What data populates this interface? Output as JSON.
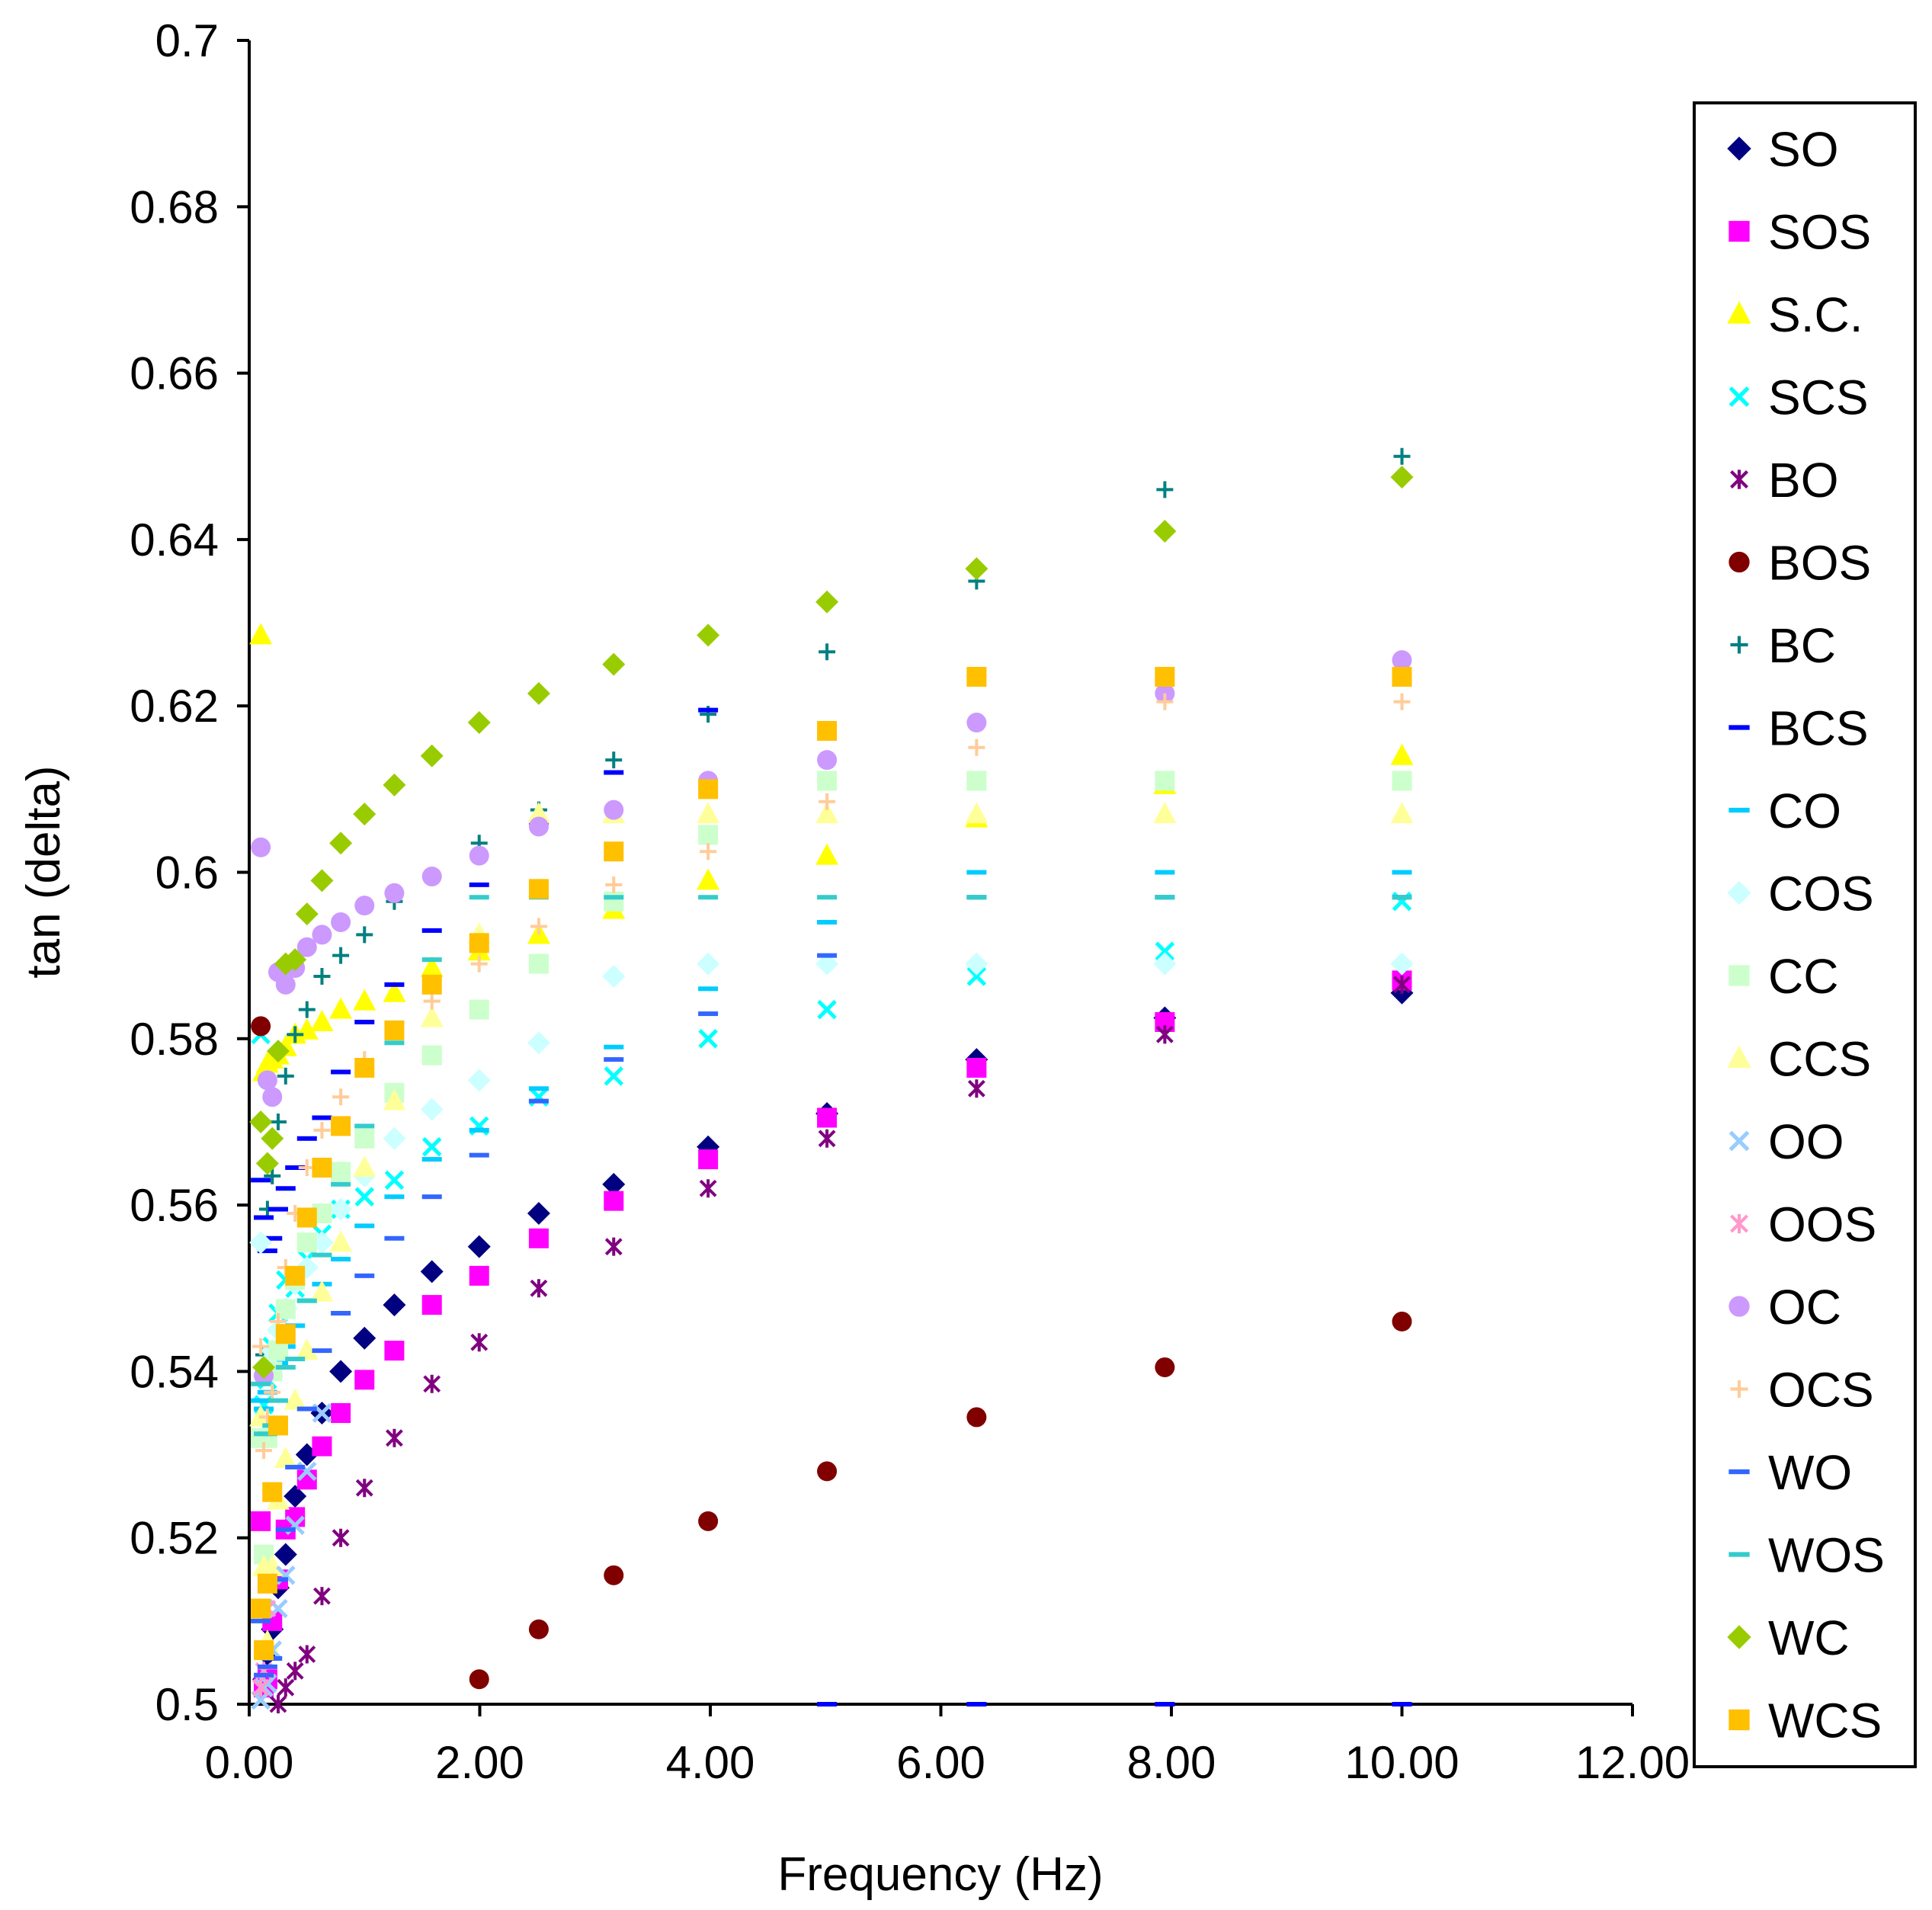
{
  "chart_data": {
    "type": "scatter",
    "title": "",
    "xlabel": "Frequency (Hz)",
    "ylabel": "tan (delta)",
    "xlim": [
      0,
      12
    ],
    "ylim": [
      0.5,
      0.7
    ],
    "x_ticks": [
      "0.00",
      "2.00",
      "4.00",
      "6.00",
      "8.00",
      "10.00",
      "12.00"
    ],
    "y_ticks": [
      "0.5",
      "0.52",
      "0.54",
      "0.56",
      "0.58",
      "0.6",
      "0.62",
      "0.64",
      "0.66",
      "0.68",
      "0.7"
    ],
    "legend_position": "right",
    "grid": false,
    "x": [
      0.1,
      0.126,
      0.158,
      0.2,
      0.251,
      0.316,
      0.398,
      0.501,
      0.631,
      0.794,
      1.0,
      1.259,
      1.585,
      1.995,
      2.512,
      3.162,
      3.981,
      5.012,
      6.31,
      7.943,
      10.0
    ],
    "series": [
      {
        "name": "SO",
        "color": "#000080",
        "marker": "diamond",
        "values": [
          0.499,
          0.503,
          0.506,
          0.509,
          0.514,
          0.518,
          0.525,
          0.53,
          0.535,
          0.54,
          0.544,
          0.548,
          0.552,
          0.555,
          0.559,
          0.5625,
          0.567,
          0.571,
          0.5775,
          0.5825,
          0.5855
        ]
      },
      {
        "name": "SOS",
        "color": "#ff00ff",
        "marker": "square",
        "values": [
          0.522,
          0.502,
          0.503,
          0.51,
          0.515,
          0.521,
          0.5225,
          0.527,
          0.531,
          0.535,
          0.539,
          0.5425,
          0.548,
          0.5515,
          0.556,
          0.5605,
          0.5655,
          0.5705,
          0.5765,
          0.582,
          0.587
        ]
      },
      {
        "name": "S.C.",
        "color": "#ffff00",
        "marker": "triangle",
        "values": [
          0.6285,
          0.576,
          0.577,
          0.5775,
          0.578,
          0.579,
          0.5805,
          0.581,
          0.582,
          0.5835,
          0.5845,
          0.5855,
          0.5885,
          0.5905,
          0.5925,
          0.5955,
          0.599,
          0.602,
          0.6065,
          0.6105,
          0.614
        ]
      },
      {
        "name": "SCS",
        "color": "#00ffff",
        "marker": "x",
        "values": [
          0.5805,
          0.536,
          0.539,
          0.543,
          0.547,
          0.551,
          0.55,
          0.5535,
          0.5565,
          0.5595,
          0.561,
          0.563,
          0.567,
          0.5695,
          0.573,
          0.5755,
          0.58,
          0.5835,
          0.5875,
          0.5905,
          0.5965
        ]
      },
      {
        "name": "BO",
        "color": "#800080",
        "marker": "asterisk",
        "values": [
          0.497,
          0.493,
          0.497,
          0.499,
          0.5,
          0.502,
          0.504,
          0.506,
          0.513,
          0.52,
          0.526,
          0.532,
          0.5385,
          0.5435,
          0.55,
          0.555,
          0.562,
          0.568,
          0.574,
          0.5805,
          0.5865
        ]
      },
      {
        "name": "BOS",
        "color": "#800000",
        "marker": "circle",
        "values": [
          0.5815,
          null,
          null,
          null,
          null,
          null,
          null,
          null,
          null,
          null,
          null,
          null,
          null,
          0.503,
          0.509,
          0.5155,
          0.522,
          0.528,
          0.5345,
          0.5405,
          0.546
        ]
      },
      {
        "name": "BC",
        "color": "#008080",
        "marker": "plus",
        "values": [
          0.57,
          0.542,
          0.5595,
          0.5635,
          0.57,
          0.5755,
          0.5805,
          0.5835,
          0.5875,
          0.59,
          0.5925,
          0.5965,
          0.5995,
          0.6035,
          0.6075,
          0.6135,
          0.619,
          0.6265,
          0.635,
          0.646,
          0.65
        ]
      },
      {
        "name": "BCS",
        "color": "#0000ff",
        "marker": "dash",
        "values": [
          0.563,
          0.5585,
          0.5545,
          0.556,
          0.5595,
          0.562,
          0.5645,
          0.568,
          0.5705,
          0.576,
          0.582,
          0.5865,
          0.593,
          0.5985,
          0.606,
          0.612,
          0.6195,
          0.5,
          0.5,
          0.5,
          0.5
        ]
      },
      {
        "name": "CO",
        "color": "#00ccff",
        "marker": "dash",
        "values": [
          0.5365,
          0.5355,
          0.5375,
          0.5395,
          0.541,
          0.543,
          0.5455,
          0.5485,
          0.5505,
          0.5535,
          0.5575,
          0.561,
          0.5655,
          0.569,
          0.574,
          0.579,
          0.586,
          0.594,
          0.6,
          0.6,
          0.6
        ]
      },
      {
        "name": "COS",
        "color": "#ccffff",
        "marker": "diamond",
        "values": [
          0.5555,
          0.5395,
          0.541,
          0.5425,
          0.545,
          0.5475,
          0.5505,
          0.5525,
          0.5555,
          0.5595,
          0.5635,
          0.568,
          0.5715,
          0.575,
          0.5795,
          0.5875,
          0.589,
          0.589,
          0.589,
          0.589,
          0.589
        ]
      },
      {
        "name": "CC",
        "color": "#ccffcc",
        "marker": "square",
        "values": [
          0.532,
          0.518,
          0.532,
          0.54,
          0.5425,
          0.5475,
          0.551,
          0.5555,
          0.559,
          0.564,
          0.568,
          0.5735,
          0.578,
          0.5835,
          0.589,
          0.5965,
          0.6045,
          0.611,
          0.611,
          0.611,
          0.611
        ]
      },
      {
        "name": "CCS",
        "color": "#ffff99",
        "marker": "triangle",
        "values": [
          0.5345,
          0.5165,
          0.5075,
          0.5165,
          0.5245,
          0.5295,
          0.5365,
          0.5425,
          0.5495,
          0.5555,
          0.5645,
          0.5725,
          0.5825,
          0.5925,
          0.607,
          0.607,
          0.607,
          0.607,
          0.607,
          0.607,
          0.607
        ]
      },
      {
        "name": "OO",
        "color": "#99ccff",
        "marker": "x",
        "values": [
          0.5005,
          0.502,
          0.5025,
          0.5065,
          0.5115,
          0.5155,
          0.5215,
          0.528,
          0.535,
          null,
          null,
          null,
          null,
          null,
          null,
          null,
          null,
          null,
          null,
          null,
          null
        ]
      },
      {
        "name": "OOS",
        "color": "#ff99cc",
        "marker": "asterisk",
        "values": [
          0.502,
          0.504,
          0.5115,
          null,
          null,
          null,
          null,
          null,
          null,
          null,
          null,
          null,
          null,
          null,
          null,
          null,
          null,
          null,
          null,
          null,
          null
        ]
      },
      {
        "name": "OC",
        "color": "#cc99ff",
        "marker": "circle",
        "values": [
          0.603,
          0.5395,
          0.575,
          0.573,
          0.588,
          0.5865,
          0.5885,
          0.591,
          0.5925,
          0.594,
          0.596,
          0.5975,
          0.5995,
          0.602,
          0.6055,
          0.6075,
          0.611,
          0.6135,
          0.618,
          0.6215,
          0.6255
        ]
      },
      {
        "name": "OCS",
        "color": "#ffcc99",
        "marker": "plus",
        "values": [
          0.543,
          0.5305,
          0.5345,
          0.5375,
          0.546,
          0.5525,
          0.559,
          0.5645,
          0.569,
          0.573,
          0.5775,
          0.581,
          0.5845,
          0.589,
          0.5935,
          0.5985,
          0.6025,
          0.6085,
          0.615,
          0.6205,
          0.6205
        ]
      },
      {
        "name": "WO",
        "color": "#3366ff",
        "marker": "dash",
        "values": [
          0.51,
          0.5035,
          0.5045,
          0.5055,
          0.515,
          0.521,
          0.5285,
          0.5355,
          0.5425,
          0.547,
          0.5515,
          0.556,
          0.561,
          0.566,
          0.5725,
          0.5775,
          0.583,
          0.59,
          0.597,
          0.597,
          0.597
        ]
      },
      {
        "name": "WOS",
        "color": "#33cccc",
        "marker": "dash",
        "values": [
          0.5385,
          0.5325,
          0.5325,
          0.5335,
          0.5365,
          0.5405,
          0.5415,
          0.5485,
          0.554,
          0.5625,
          0.5695,
          0.5795,
          0.5895,
          0.597,
          0.597,
          0.597,
          0.597,
          0.597,
          0.597,
          0.597,
          0.597
        ]
      },
      {
        "name": "WC",
        "color": "#99cc00",
        "marker": "diamond",
        "values": [
          0.57,
          0.5405,
          0.565,
          0.568,
          0.5785,
          0.589,
          0.5895,
          0.595,
          0.599,
          0.6035,
          0.607,
          0.6105,
          0.614,
          0.618,
          0.6215,
          0.625,
          0.6285,
          0.6325,
          0.6365,
          0.641,
          0.6475
        ]
      },
      {
        "name": "WCS",
        "color": "#ffc000",
        "marker": "square",
        "values": [
          0.5115,
          0.5065,
          0.5145,
          0.5255,
          0.5335,
          0.5445,
          0.5515,
          0.5585,
          0.5645,
          0.5695,
          0.5765,
          0.581,
          0.5865,
          0.5915,
          0.598,
          0.6025,
          0.61,
          0.617,
          0.6235,
          0.6235,
          0.6235
        ]
      }
    ]
  }
}
